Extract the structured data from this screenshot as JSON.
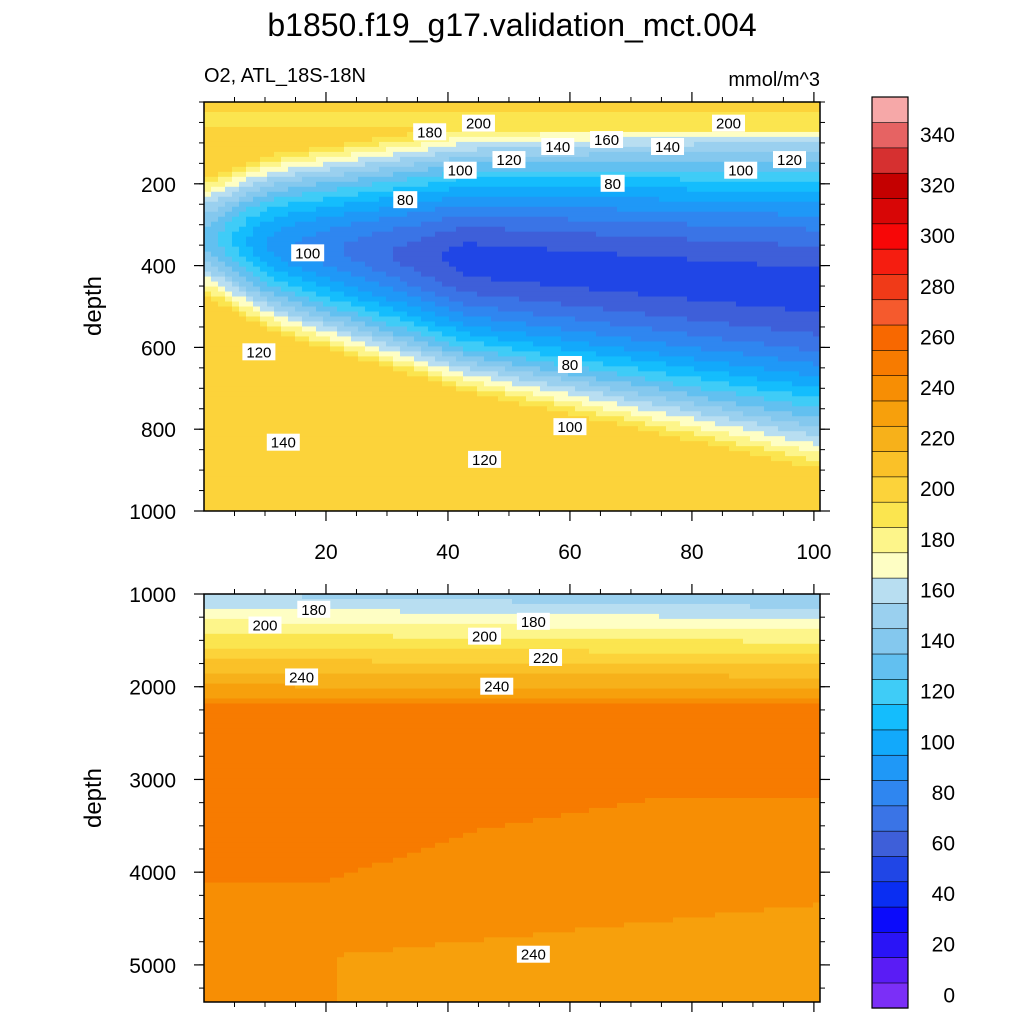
{
  "chart_data": {
    "type": "contour",
    "title": "b1850.f19_g17.validation_mct.004",
    "variable_label": "O2, ATL_18S-18N",
    "units": "mmol/m^3",
    "colorbar": {
      "levels": [
        0,
        10,
        20,
        30,
        40,
        50,
        60,
        70,
        80,
        90,
        100,
        110,
        120,
        130,
        140,
        150,
        160,
        170,
        180,
        190,
        200,
        210,
        220,
        230,
        240,
        250,
        260,
        270,
        280,
        290,
        300,
        310,
        320,
        330,
        340,
        350
      ],
      "tick_labels": [
        "0",
        "20",
        "40",
        "60",
        "80",
        "100",
        "120",
        "140",
        "160",
        "180",
        "200",
        "220",
        "240",
        "260",
        "280",
        "300",
        "320",
        "340"
      ],
      "colors": [
        "#7b2ff7",
        "#5a1cf5",
        "#2a14f6",
        "#0b0bfb",
        "#0a2ef2",
        "#2046e6",
        "#3e5fd9",
        "#3a74e6",
        "#2f86f0",
        "#1f98f7",
        "#12a9fb",
        "#14bdfd",
        "#3fccf7",
        "#62c0f0",
        "#84c8ee",
        "#9ad0ef",
        "#b8def1",
        "#fefec4",
        "#fdf58a",
        "#fbe54f",
        "#fcd33a",
        "#fac128",
        "#f7b11a",
        "#f7a00c",
        "#f78e04",
        "#f77b00",
        "#f86800",
        "#f55a2d",
        "#f03a18",
        "#f51d10",
        "#f70707",
        "#d80606",
        "#c40000",
        "#d63030",
        "#e66363",
        "#f6a8a8"
      ]
    },
    "upper_panel": {
      "ylabel": "depth",
      "ylim": [
        0,
        1000
      ],
      "yticks": [
        200,
        400,
        600,
        800,
        1000
      ],
      "xlim": [
        0,
        101
      ],
      "xticks": [
        20,
        40,
        60,
        80,
        100
      ],
      "contour_labels": [
        {
          "text": "200",
          "x": 45,
          "y": 53
        },
        {
          "text": "200",
          "x": 86,
          "y": 53
        },
        {
          "text": "180",
          "x": 37,
          "y": 74
        },
        {
          "text": "160",
          "x": 66,
          "y": 93
        },
        {
          "text": "140",
          "x": 58,
          "y": 110
        },
        {
          "text": "140",
          "x": 76,
          "y": 110
        },
        {
          "text": "120",
          "x": 50,
          "y": 142
        },
        {
          "text": "120",
          "x": 96,
          "y": 142
        },
        {
          "text": "100",
          "x": 42,
          "y": 168
        },
        {
          "text": "100",
          "x": 88,
          "y": 168
        },
        {
          "text": "80",
          "x": 33,
          "y": 240
        },
        {
          "text": "80",
          "x": 67,
          "y": 200
        },
        {
          "text": "100",
          "x": 17,
          "y": 370
        },
        {
          "text": "120",
          "x": 9,
          "y": 612
        },
        {
          "text": "80",
          "x": 60,
          "y": 643
        },
        {
          "text": "100",
          "x": 60,
          "y": 795
        },
        {
          "text": "140",
          "x": 13,
          "y": 833
        },
        {
          "text": "120",
          "x": 46,
          "y": 875
        }
      ]
    },
    "lower_panel": {
      "ylabel": "depth",
      "ylim": [
        1000,
        5400
      ],
      "yticks": [
        1000,
        2000,
        3000,
        4000,
        5000
      ],
      "xlim": [
        0,
        101
      ],
      "contour_labels": [
        {
          "text": "180",
          "x": 18,
          "y": 1170
        },
        {
          "text": "200",
          "x": 10,
          "y": 1340
        },
        {
          "text": "180",
          "x": 54,
          "y": 1300
        },
        {
          "text": "200",
          "x": 46,
          "y": 1460
        },
        {
          "text": "220",
          "x": 56,
          "y": 1690
        },
        {
          "text": "240",
          "x": 16,
          "y": 1900
        },
        {
          "text": "240",
          "x": 48,
          "y": 2000
        },
        {
          "text": "240",
          "x": 54,
          "y": 4890
        }
      ]
    }
  }
}
